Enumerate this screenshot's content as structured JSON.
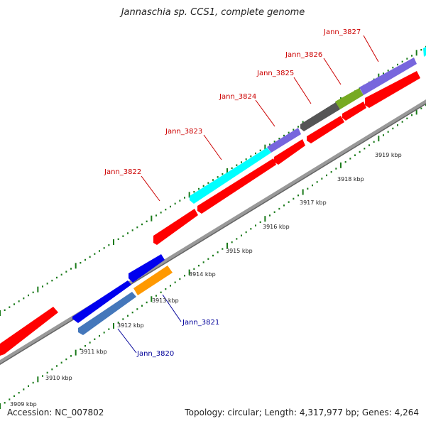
{
  "title": "Jannaschia sp. CCS1, complete genome",
  "footer": {
    "accession": "Accession: NC_007802",
    "topology": "Topology: circular; Length: 4,317,977 bp; Genes: 4,264"
  },
  "colors": {
    "forward_label": "#cc0000",
    "reverse_label": "#000099",
    "backbone": "#999999",
    "tick": "#1a7a1a"
  },
  "kbp_labels": [
    "3909 kbp",
    "3910 kbp",
    "3911 kbp",
    "3912 kbp",
    "3913 kbp",
    "3914 kbp",
    "3915 kbp",
    "3916 kbp",
    "3917 kbp",
    "3918 kbp",
    "3919 kbp"
  ],
  "gene_labels": [
    {
      "text": "Jann_3822",
      "strand": "forward"
    },
    {
      "text": "Jann_3823",
      "strand": "forward"
    },
    {
      "text": "Jann_3824",
      "strand": "forward"
    },
    {
      "text": "Jann_3825",
      "strand": "forward"
    },
    {
      "text": "Jann_3826",
      "strand": "forward"
    },
    {
      "text": "Jann_3827",
      "strand": "forward"
    },
    {
      "text": "Jann_3821",
      "strand": "reverse"
    },
    {
      "text": "Jann_3820",
      "strand": "reverse"
    }
  ],
  "features": [
    {
      "name": "cds",
      "color": "#ff0000"
    },
    {
      "name": "Jann_3822",
      "color": "#00ffff"
    },
    {
      "name": "Jann_3823",
      "color": "#7766dd"
    },
    {
      "name": "Jann_3824",
      "color": "#555555"
    },
    {
      "name": "Jann_3825",
      "color": "#77aa22"
    },
    {
      "name": "Jann_3826",
      "color": "#7766dd"
    },
    {
      "name": "Jann_3820",
      "color": "#0000ee"
    },
    {
      "name": "Jann_3821",
      "color": "#ff9900"
    },
    {
      "name": "reverse-cds-light",
      "color": "#4477bb"
    }
  ]
}
